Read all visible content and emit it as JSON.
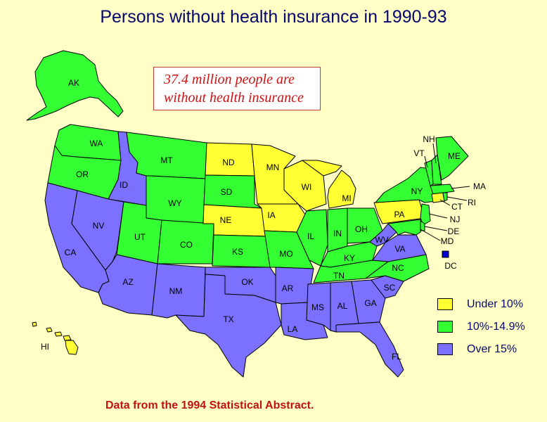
{
  "title": "Persons without health insurance in 1990-93",
  "callout": {
    "line1": "37.4 million people are",
    "line2": "without health insurance"
  },
  "source": "Data from the 1994 Statistical Abstract.",
  "colors": {
    "under10": "#ffff33",
    "mid": "#33ff33",
    "over15": "#7b70ff",
    "dc": "#0000cc",
    "background": "#ffffc6"
  },
  "legend": [
    {
      "label": "Under 10%",
      "category": "under10"
    },
    {
      "label": "10%-14.9%",
      "category": "mid"
    },
    {
      "label": "Over 15%",
      "category": "over15"
    }
  ],
  "states": [
    {
      "abbr": "AK",
      "category": "mid"
    },
    {
      "abbr": "HI",
      "category": "under10"
    },
    {
      "abbr": "WA",
      "category": "mid"
    },
    {
      "abbr": "OR",
      "category": "mid"
    },
    {
      "abbr": "CA",
      "category": "over15"
    },
    {
      "abbr": "ID",
      "category": "over15"
    },
    {
      "abbr": "NV",
      "category": "over15"
    },
    {
      "abbr": "MT",
      "category": "mid"
    },
    {
      "abbr": "WY",
      "category": "mid"
    },
    {
      "abbr": "UT",
      "category": "mid"
    },
    {
      "abbr": "CO",
      "category": "mid"
    },
    {
      "abbr": "AZ",
      "category": "over15"
    },
    {
      "abbr": "NM",
      "category": "over15"
    },
    {
      "abbr": "ND",
      "category": "under10"
    },
    {
      "abbr": "SD",
      "category": "mid"
    },
    {
      "abbr": "NE",
      "category": "under10"
    },
    {
      "abbr": "KS",
      "category": "mid"
    },
    {
      "abbr": "OK",
      "category": "over15"
    },
    {
      "abbr": "TX",
      "category": "over15"
    },
    {
      "abbr": "MN",
      "category": "under10"
    },
    {
      "abbr": "IA",
      "category": "under10"
    },
    {
      "abbr": "MO",
      "category": "mid"
    },
    {
      "abbr": "AR",
      "category": "over15"
    },
    {
      "abbr": "LA",
      "category": "over15"
    },
    {
      "abbr": "WI",
      "category": "under10"
    },
    {
      "abbr": "IL",
      "category": "mid"
    },
    {
      "abbr": "MI",
      "category": "under10"
    },
    {
      "abbr": "IN",
      "category": "mid"
    },
    {
      "abbr": "OH",
      "category": "mid"
    },
    {
      "abbr": "KY",
      "category": "mid"
    },
    {
      "abbr": "TN",
      "category": "mid"
    },
    {
      "abbr": "MS",
      "category": "over15"
    },
    {
      "abbr": "AL",
      "category": "over15"
    },
    {
      "abbr": "GA",
      "category": "over15"
    },
    {
      "abbr": "FL",
      "category": "over15"
    },
    {
      "abbr": "SC",
      "category": "over15"
    },
    {
      "abbr": "NC",
      "category": "mid"
    },
    {
      "abbr": "VA",
      "category": "over15"
    },
    {
      "abbr": "WV",
      "category": "over15"
    },
    {
      "abbr": "PA",
      "category": "under10"
    },
    {
      "abbr": "NY",
      "category": "mid"
    },
    {
      "abbr": "VT",
      "category": "mid"
    },
    {
      "abbr": "NH",
      "category": "mid"
    },
    {
      "abbr": "ME",
      "category": "mid"
    },
    {
      "abbr": "MA",
      "category": "mid"
    },
    {
      "abbr": "RI",
      "category": "mid"
    },
    {
      "abbr": "CT",
      "category": "under10"
    },
    {
      "abbr": "NJ",
      "category": "mid"
    },
    {
      "abbr": "DE",
      "category": "mid"
    },
    {
      "abbr": "MD",
      "category": "mid"
    },
    {
      "abbr": "DC",
      "category": "dc"
    }
  ]
}
